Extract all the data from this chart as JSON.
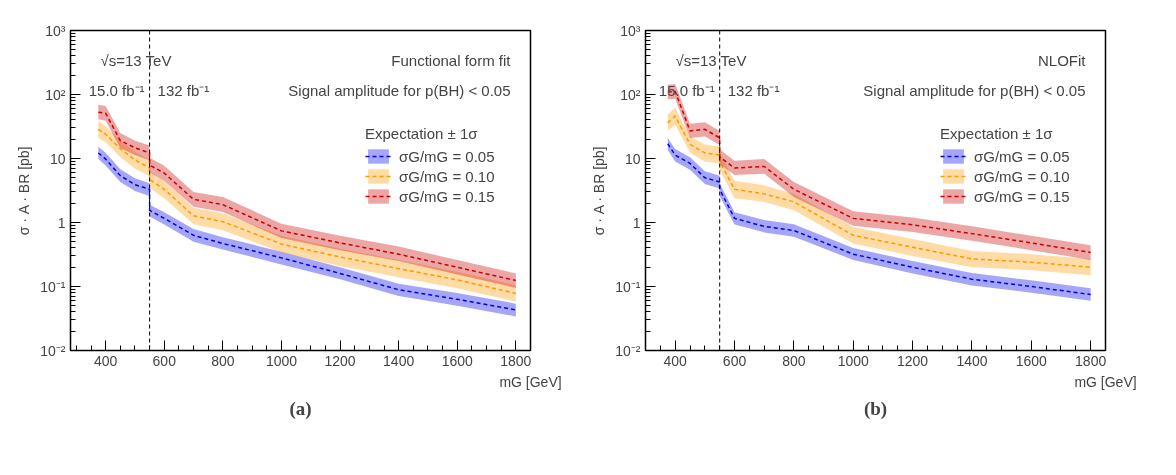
{
  "chart_data": [
    {
      "type": "line",
      "xlabel": "mG [GeV]",
      "ylabel": "σ · A · BR [pb]",
      "log": "y",
      "grid": false,
      "legend": "top right",
      "legend_title": "Expectation ± 1σ",
      "line_style": "dashed",
      "marker": "none",
      "xlim": [
        280,
        1850
      ],
      "xticks": [
        400,
        600,
        800,
        1000,
        1200,
        1400,
        1600,
        1800
      ],
      "ylim": [
        0.01,
        1000
      ],
      "yticks": [
        {
          "value": 0.01,
          "label": "10⁻²"
        },
        {
          "value": 0.1,
          "label": "10⁻¹"
        },
        1,
        10,
        {
          "value": 100,
          "label": "10²"
        },
        {
          "value": 1000,
          "label": "10³"
        }
      ],
      "x": [
        375,
        400,
        450,
        500,
        550,
        550,
        600,
        700,
        800,
        1000,
        1200,
        1400,
        1600,
        1800
      ],
      "series": [
        {
          "name": "σG/mG = 0.05",
          "color": "#0000ee",
          "values": [
            12.2,
            9.8,
            5.4,
            3.9,
            3.3,
            1.55,
            1.16,
            0.63,
            0.47,
            0.28,
            0.16,
            0.089,
            0.063,
            0.043
          ],
          "lower": [
            9.8,
            7.8,
            4.3,
            3.1,
            2.6,
            1.24,
            0.93,
            0.5,
            0.38,
            0.22,
            0.13,
            0.071,
            0.05,
            0.034
          ],
          "upper": [
            15.3,
            12.3,
            6.8,
            4.9,
            4.1,
            1.9,
            1.45,
            0.79,
            0.59,
            0.35,
            0.2,
            0.11,
            0.079,
            0.054
          ]
        },
        {
          "name": "σG/mG = 0.10",
          "color": "#ff9900",
          "values": [
            28.6,
            24,
            14.2,
            9.5,
            7.1,
            4.7,
            3.3,
            1.27,
            1.03,
            0.46,
            0.29,
            0.19,
            0.127,
            0.078
          ],
          "lower": [
            21,
            18,
            10.5,
            7,
            5.3,
            3.5,
            2.4,
            0.94,
            0.76,
            0.34,
            0.21,
            0.14,
            0.094,
            0.058
          ],
          "upper": [
            39,
            32,
            19,
            12.8,
            9.6,
            6.3,
            4.5,
            1.7,
            1.4,
            0.62,
            0.39,
            0.26,
            0.17,
            0.105
          ]
        },
        {
          "name": "σG/mG = 0.15",
          "color": "#cc0000",
          "values": [
            53,
            51,
            19,
            14.7,
            12.2,
            7.9,
            5.9,
            2.3,
            1.9,
            0.74,
            0.48,
            0.32,
            0.2,
            0.124
          ],
          "lower": [
            41,
            39,
            14.6,
            11.3,
            9.4,
            6.1,
            4.5,
            1.77,
            1.46,
            0.57,
            0.37,
            0.25,
            0.154,
            0.095
          ],
          "upper": [
            69,
            66,
            25,
            19,
            15.9,
            10.3,
            7.7,
            3,
            2.5,
            0.96,
            0.62,
            0.42,
            0.26,
            0.16
          ]
        }
      ],
      "ref_lines": [
        {
          "axis": "x",
          "value": 550,
          "label": null,
          "color": "#000000",
          "line_style": "dashed"
        }
      ],
      "annotations": [
        "√s=13 TeV",
        "15.0 fb⁻¹",
        "132 fb⁻¹",
        "Functional form fit",
        "Signal amplitude for p(BH) < 0.05",
        "(a)"
      ]
    },
    {
      "type": "line",
      "xlabel": "mG [GeV]",
      "ylabel": "σ · A · BR [pb]",
      "log": "y",
      "grid": false,
      "legend": "top right",
      "legend_title": "Expectation ± 1σ",
      "line_style": "dashed",
      "marker": "none",
      "xlim": [
        300,
        1850
      ],
      "xticks": [
        400,
        600,
        800,
        1000,
        1200,
        1400,
        1600,
        1800
      ],
      "ylim": [
        0.01,
        1000
      ],
      "yticks": [
        {
          "value": 0.01,
          "label": "10⁻²"
        },
        {
          "value": 0.1,
          "label": "10⁻¹"
        },
        1,
        10,
        {
          "value": 100,
          "label": "10²"
        },
        {
          "value": 1000,
          "label": "10³"
        }
      ],
      "x": [
        375,
        400,
        450,
        500,
        550,
        550,
        600,
        700,
        800,
        1000,
        1200,
        1400,
        1600,
        1800
      ],
      "series": [
        {
          "name": "σG/mG = 0.05",
          "color": "#0000ee",
          "values": [
            17,
            11.3,
            8.4,
            5,
            4.3,
            3.3,
            1.16,
            0.87,
            0.75,
            0.32,
            0.2,
            0.13,
            0.1,
            0.075
          ],
          "lower": [
            13.6,
            9,
            6.7,
            4,
            3.4,
            2.6,
            0.93,
            0.7,
            0.6,
            0.26,
            0.16,
            0.104,
            0.08,
            0.06
          ],
          "upper": [
            21,
            14.1,
            10.5,
            6.3,
            5.4,
            4.1,
            1.45,
            1.09,
            0.94,
            0.4,
            0.25,
            0.163,
            0.125,
            0.094
          ]
        },
        {
          "name": "σG/mG = 0.10",
          "color": "#ff9900",
          "values": [
            36,
            46,
            16.6,
            12.2,
            11.3,
            8.9,
            3.3,
            2.8,
            2.1,
            0.63,
            0.41,
            0.27,
            0.24,
            0.2
          ],
          "lower": [
            27,
            34,
            12.3,
            9,
            8.4,
            6.6,
            2.4,
            2.1,
            1.56,
            0.47,
            0.3,
            0.2,
            0.18,
            0.15
          ],
          "upper": [
            49,
            62,
            22,
            16.5,
            15.3,
            12,
            4.5,
            3.8,
            2.8,
            0.85,
            0.55,
            0.36,
            0.32,
            0.27
          ]
        },
        {
          "name": "σG/mG = 0.15",
          "color": "#cc0000",
          "values": [
            109,
            112,
            27,
            28.6,
            21,
            10.6,
            7.1,
            7.5,
            3.3,
            1.16,
            0.92,
            0.67,
            0.48,
            0.34
          ],
          "lower": [
            84,
            86,
            21,
            22,
            16.2,
            8.2,
            5.5,
            5.8,
            2.5,
            0.89,
            0.71,
            0.52,
            0.37,
            0.26
          ],
          "upper": [
            142,
            146,
            35,
            37,
            27,
            13.8,
            9.2,
            9.8,
            4.3,
            1.5,
            1.2,
            0.87,
            0.62,
            0.44
          ]
        }
      ],
      "ref_lines": [
        {
          "axis": "x",
          "value": 550,
          "label": null,
          "color": "#000000",
          "line_style": "dashed"
        }
      ],
      "annotations": [
        "√s=13 TeV",
        "15.0 fb⁻¹",
        "132 fb⁻¹",
        "NLOFit",
        "Signal amplitude for p(BH) < 0.05",
        "(b)"
      ]
    }
  ]
}
